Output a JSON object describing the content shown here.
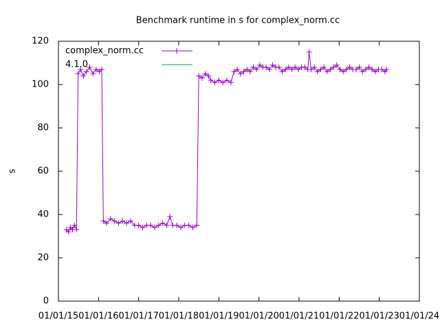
{
  "chart_data": {
    "type": "line",
    "title": "Benchmark runtime in s for complex_norm.cc",
    "y_label": "s",
    "xlim": [
      2015,
      2024
    ],
    "xticks": [
      {
        "value": 2015,
        "label": "01/01/15"
      },
      {
        "value": 2016,
        "label": "01/01/16"
      },
      {
        "value": 2017,
        "label": "01/01/17"
      },
      {
        "value": 2018,
        "label": "01/01/18"
      },
      {
        "value": 2019,
        "label": "01/01/19"
      },
      {
        "value": 2020,
        "label": "01/01/20"
      },
      {
        "value": 2021,
        "label": "01/01/21"
      },
      {
        "value": 2022,
        "label": "01/01/22"
      },
      {
        "value": 2023,
        "label": "01/01/23"
      },
      {
        "value": 2024,
        "label": "01/01/24"
      }
    ],
    "ylim": [
      0,
      120
    ],
    "yticks": [
      0,
      20,
      40,
      60,
      80,
      100,
      120
    ],
    "legend": "top-left",
    "series": [
      {
        "name": "complex_norm.cc",
        "color": "#9400d3",
        "marker": "+",
        "x": [
          2015.2,
          2015.25,
          2015.3,
          2015.35,
          2015.4,
          2015.45,
          2015.49,
          2015.55,
          2015.62,
          2015.7,
          2015.78,
          2015.86,
          2015.94,
          2016.02,
          2016.08,
          2016.12,
          2016.2,
          2016.3,
          2016.4,
          2016.5,
          2016.6,
          2016.7,
          2016.8,
          2016.9,
          2017.0,
          2017.1,
          2017.2,
          2017.3,
          2017.4,
          2017.5,
          2017.6,
          2017.7,
          2017.78,
          2017.85,
          2017.95,
          2018.05,
          2018.15,
          2018.25,
          2018.35,
          2018.45,
          2018.5,
          2018.58,
          2018.66,
          2018.74,
          2018.8,
          2018.9,
          2019.0,
          2019.1,
          2019.2,
          2019.3,
          2019.38,
          2019.46,
          2019.54,
          2019.62,
          2019.7,
          2019.78,
          2019.86,
          2019.94,
          2020.02,
          2020.1,
          2020.18,
          2020.26,
          2020.34,
          2020.42,
          2020.5,
          2020.58,
          2020.66,
          2020.74,
          2020.82,
          2020.9,
          2020.98,
          2021.06,
          2021.14,
          2021.22,
          2021.25,
          2021.3,
          2021.38,
          2021.46,
          2021.54,
          2021.62,
          2021.7,
          2021.78,
          2021.86,
          2021.94,
          2022.02,
          2022.1,
          2022.18,
          2022.26,
          2022.34,
          2022.42,
          2022.5,
          2022.58,
          2022.66,
          2022.74,
          2022.82,
          2022.9,
          2022.98,
          2023.06,
          2023.14,
          2023.18
        ],
        "values": [
          33,
          32,
          34,
          33,
          35,
          33,
          105,
          107,
          104,
          106,
          108,
          105,
          107,
          106,
          107,
          37,
          36,
          38,
          37,
          36,
          37,
          36,
          37,
          35,
          35,
          34,
          35,
          35,
          34,
          35,
          36,
          35,
          39,
          35,
          35,
          34,
          35,
          35,
          34,
          35,
          104,
          103,
          105,
          104,
          102,
          101,
          102,
          101,
          102,
          101,
          106,
          107,
          105,
          106,
          107,
          106,
          108,
          107,
          109,
          108,
          108,
          107,
          109,
          108,
          108,
          106,
          107,
          108,
          107,
          108,
          107,
          108,
          108,
          107,
          115,
          107,
          108,
          106,
          107,
          108,
          106,
          107,
          108,
          109,
          107,
          106,
          107,
          108,
          107,
          107,
          108,
          106,
          107,
          108,
          107,
          106,
          107,
          107,
          106,
          107
        ]
      },
      {
        "name": "4.1.0",
        "color": "#009e73",
        "x": [],
        "values": []
      }
    ]
  }
}
